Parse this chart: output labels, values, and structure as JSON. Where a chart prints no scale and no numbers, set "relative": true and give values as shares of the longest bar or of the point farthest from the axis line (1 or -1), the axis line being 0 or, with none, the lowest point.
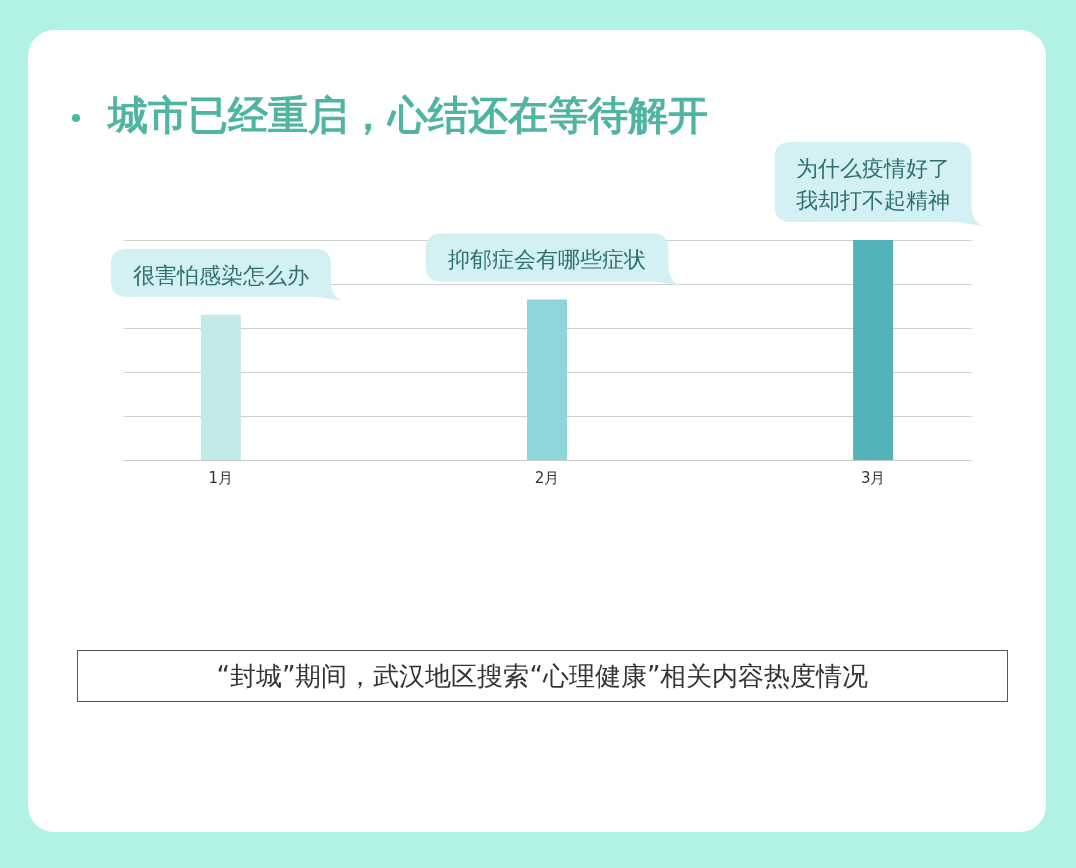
{
  "chart_data": {
    "type": "bar",
    "title": "城市已经重启，心结还在等待解开",
    "categories": [
      "1月",
      "2月",
      "3月"
    ],
    "values": [
      0.66,
      0.73,
      1
    ],
    "colors": [
      "#c2eaeb",
      "#8dd6da",
      "#52b3b8"
    ],
    "relative": true,
    "grid": "y",
    "annotations": [
      {
        "text": "很害怕感染怎么办",
        "x": "1月",
        "y": 0.66
      },
      {
        "text": "抑郁症会有哪些症状",
        "x": "2月",
        "y": 0.73
      },
      {
        "text": "为什么疫情好了我却打不起精神",
        "x": "3月",
        "y": 1
      },
      "“封城”期间，武汉地区搜索“心理健康”相关内容热度情况"
    ]
  }
}
